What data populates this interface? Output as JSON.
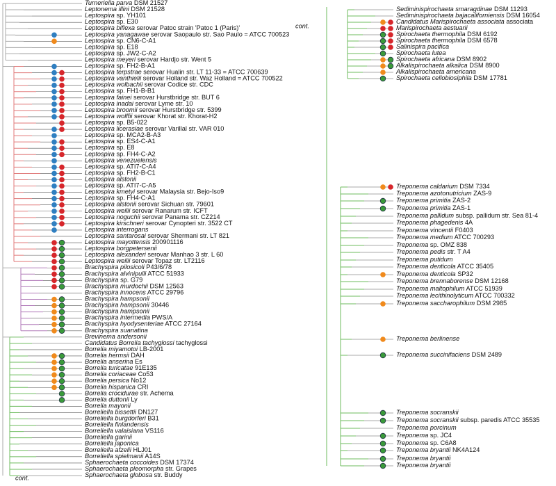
{
  "left": {
    "note": "cont.",
    "leaves": [
      {
        "name": "Turneriella parva",
        "strain": "DSM 21527"
      },
      {
        "name": "Leptonema illini",
        "strain": "DSM 21528"
      },
      {
        "name": "Leptospira",
        "strain": "sp. YH101"
      },
      {
        "name": "Leptospira",
        "strain": "sp. E30"
      },
      {
        "name": "Leptospira biflexa",
        "strain": "serovar Patoc strain 'Patoc 1 (Paris)'"
      },
      {
        "name": "Leptospira yanagawae",
        "strain": "serovar Saopaulo str. Sao Paulo = ATCC 700523"
      },
      {
        "name": "Leptospira",
        "strain": "sp. CN6-C-A1"
      },
      {
        "name": "Leptospira",
        "strain": "sp. E18"
      },
      {
        "name": "Leptospira",
        "strain": "sp. JW2-C-A2"
      },
      {
        "name": "Leptospira meyeri",
        "strain": "serovar Hardjo str. Went 5"
      },
      {
        "name": "Leptospira",
        "strain": "sp. FH2-B-A1"
      },
      {
        "name": "Leptospira terpstrae",
        "strain": "serovar Hualin str. LT 11-33 = ATCC 700639"
      },
      {
        "name": "Leptospira vanthielii",
        "strain": "serovar Holland str. Waz Holland = ATCC 700522"
      },
      {
        "name": "Leptospira wolbachii",
        "strain": "serovar Codice str. CDC"
      },
      {
        "name": "Leptospira",
        "strain": "sp. FH1-B-B1"
      },
      {
        "name": "Leptospira fainei",
        "strain": "serovar Hurstbridge str. BUT 6"
      },
      {
        "name": "Leptospira inadai",
        "strain": "serovar Lyme str. 10"
      },
      {
        "name": "Leptospira broomii",
        "strain": "serovar Hurstbridge str. 5399"
      },
      {
        "name": "Leptospira wolffii",
        "strain": "serovar Khorat str. Khorat-H2"
      },
      {
        "name": "Leptospira",
        "strain": "sp. B5-022"
      },
      {
        "name": "Leptospira licerasiae",
        "strain": "serovar Varillal str. VAR 010"
      },
      {
        "name": "Leptospira",
        "strain": "sp. MCA2-B-A3"
      },
      {
        "name": "Leptospira",
        "strain": "sp. ES4-C-A1"
      },
      {
        "name": "Leptospira",
        "strain": "sp. E8"
      },
      {
        "name": "Leptospira",
        "strain": "sp. FH4-C-A2"
      },
      {
        "name": "Leptospira venezuelensis"
      },
      {
        "name": "Leptospira",
        "strain": "sp. ATI7-C-A4"
      },
      {
        "name": "Leptospira",
        "strain": "sp. FH2-B-C1"
      },
      {
        "name": "Leptospira alstonii"
      },
      {
        "name": "Leptospira",
        "strain": "sp. ATI7-C-A5"
      },
      {
        "name": "Leptospira kmetyi",
        "strain": "serovar Malaysia str. Bejo-Iso9"
      },
      {
        "name": "Leptospira",
        "strain": "sp. FH4-C-A1"
      },
      {
        "name": "Leptospira alstonii",
        "strain": "serovar Sichuan str. 79601"
      },
      {
        "name": "Leptospira weilii",
        "strain": "serovar Ranarum str. ICFT"
      },
      {
        "name": "Leptospira noguchii",
        "strain": "serovar Panama str. CZ214"
      },
      {
        "name": "Leptospira kirschneri",
        "strain": "serovar Cynopteri str. 3522 CT"
      },
      {
        "name": "Leptospira interrogans"
      },
      {
        "name": "Leptospira santarosai",
        "strain": "serovar Shermani str. LT 821"
      },
      {
        "name": "Leptospira mayottensis",
        "strain": "200901116"
      },
      {
        "name": "Leptospira borgpetersenii"
      },
      {
        "name": "Leptospira alexanderi",
        "strain": "serovar Manhao 3 str. L 60"
      },
      {
        "name": "Leptospira weilii",
        "strain": "serovar Topaz str. LT2116"
      },
      {
        "name": "Brachyspira pilosicoli",
        "strain": "P43/6/78"
      },
      {
        "name": "Brachyspira alvinipulli",
        "strain": "ATCC 51933"
      },
      {
        "name": "Brachyspira",
        "strain": "sp. G79"
      },
      {
        "name": "Brachyspira murdochii",
        "strain": "DSM 12563"
      },
      {
        "name": "Brachyspira innocens",
        "strain": "ATCC 29796"
      },
      {
        "name": "Brachyspira hampsonii"
      },
      {
        "name": "Brachyspira hampsonii",
        "strain": "30446"
      },
      {
        "name": "Brachyspira hampsonii"
      },
      {
        "name": "Brachyspira intermedia",
        "strain": "PWS/A"
      },
      {
        "name": "Brachyspira hyodysenteriae",
        "strain": "ATCC 27164"
      },
      {
        "name": "Brachyspira suanatina"
      },
      {
        "name": "Brevinema andersonii"
      },
      {
        "name": "Candidatus Borrelia tachyglossi",
        "strain": "tachyglossi"
      },
      {
        "name": "Borrelia miyamotoi",
        "strain": "LB-2001"
      },
      {
        "name": "Borrelia hermsii",
        "strain": "DAH"
      },
      {
        "name": "Borrelia anserina",
        "strain": "Es"
      },
      {
        "name": "Borrelia turicatae",
        "strain": "91E135"
      },
      {
        "name": "Borrelia coriaceae",
        "strain": "Co53"
      },
      {
        "name": "Borrelia persica",
        "strain": "No12"
      },
      {
        "name": "Borrelia hispanica",
        "strain": "CRI"
      },
      {
        "name": "Borrelia crocidurae",
        "strain": "str. Achema"
      },
      {
        "name": "Borrelia duttonii",
        "strain": "Ly"
      },
      {
        "name": "Borrelia mayonii"
      },
      {
        "name": "Borreliella bissettii",
        "strain": "DN127"
      },
      {
        "name": "Borreliella burgdorferi",
        "strain": "B31"
      },
      {
        "name": "Borreliella finlandensis"
      },
      {
        "name": "Borreliella valaisiana",
        "strain": "VS116"
      },
      {
        "name": "Borreliella garinii"
      },
      {
        "name": "Borreliella japonica"
      },
      {
        "name": "Borreliella afzelii",
        "strain": "HLJ01"
      },
      {
        "name": "Borreliella spielmanii",
        "strain": "A14S"
      },
      {
        "name": "Sphaerochaeta coccoides",
        "strain": "DSM 17374"
      },
      {
        "name": "Sphaerochaeta pleomorpha",
        "strain": "str. Grapes"
      },
      {
        "name": "Sphaerochaeta globosa",
        "strain": "str. Buddy"
      }
    ]
  },
  "right": {
    "note": "cont.",
    "leaves": [
      {
        "name": "Sediminispirochaeta smaragdinae",
        "strain": "DSM 11293"
      },
      {
        "name": "Sediminispirochaeta bajacaliforniensis",
        "strain": "DSM 16054"
      },
      {
        "name": "Candidatus Marispirochaeta associata",
        "strain": "associata"
      },
      {
        "name": "Marispirochaeta aestuarii"
      },
      {
        "name": "Spirochaeta thermophila",
        "strain": "DSM 6192"
      },
      {
        "name": "Spirochaeta thermophila",
        "strain": "DSM 6578"
      },
      {
        "name": "Salinispira pacifica"
      },
      {
        "name": "Spirochaeta lutea"
      },
      {
        "name": "Spirochaeta africana",
        "strain": "DSM 8902"
      },
      {
        "name": "Alkalispirochaeta alkalica",
        "strain": "DSM 8900"
      },
      {
        "name": "Alkalispirochaeta americana"
      },
      {
        "name": "Spirochaeta cellobiosiphila",
        "strain": "DSM 17781"
      },
      {
        "name": "Treponema caldarium",
        "strain": "DSM 7334"
      },
      {
        "name": "Treponema azotonutricium",
        "strain": "ZAS-9"
      },
      {
        "name": "Treponema primitia",
        "strain": "ZAS-2"
      },
      {
        "name": "Treponema primitia",
        "strain": "ZAS-1"
      },
      {
        "name": "Treponema pallidum",
        "strain": "subsp. pallidum str. Sea 81-4"
      },
      {
        "name": "Treponema phagedenis",
        "strain": "4A"
      },
      {
        "name": "Treponema vincentii",
        "strain": "F0403"
      },
      {
        "name": "Treponema medium",
        "strain": "ATCC 700293"
      },
      {
        "name": "Treponema",
        "strain": "sp. OMZ 838"
      },
      {
        "name": "Treponema pedis",
        "strain": "str. T A4"
      },
      {
        "name": "Treponema putidum"
      },
      {
        "name": "Treponema denticola",
        "strain": "ATCC 35405"
      },
      {
        "name": "Treponema denticola",
        "strain": "SP32"
      },
      {
        "name": "Treponema brennaborense",
        "strain": "DSM 12168"
      },
      {
        "name": "Treponema maltophilum",
        "strain": "ATCC 51939"
      },
      {
        "name": "Treponema lecithinolyticum",
        "strain": "ATCC 700332"
      },
      {
        "name": "Treponema saccharophilum",
        "strain": "DSM 2985"
      },
      {
        "name": "Treponema berlinense"
      },
      {
        "name": "Treponema succinifaciens",
        "strain": "DSM 2489"
      },
      {
        "name": "Treponema socranskii"
      },
      {
        "name": "Treponema socranskii",
        "strain": "subsp. paredis ATCC 35535"
      },
      {
        "name": "Treponema porcinum"
      },
      {
        "name": "Treponema",
        "strain": "sp. JC4"
      },
      {
        "name": "Treponema",
        "strain": "sp. C6A8"
      },
      {
        "name": "Treponema bryantii",
        "strain": "NK4A124"
      },
      {
        "name": "Treponema bryantii"
      },
      {
        "name": "Treponema bryantii"
      }
    ]
  }
}
